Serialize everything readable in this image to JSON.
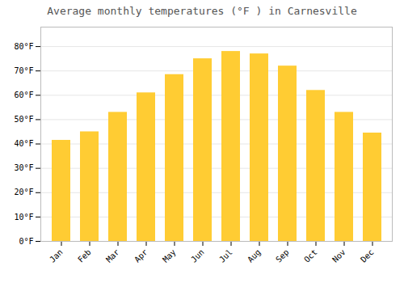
{
  "chart_data": {
    "type": "bar",
    "title": "Average monthly temperatures (°F ) in Carnesville",
    "categories": [
      "Jan",
      "Feb",
      "Mar",
      "Apr",
      "May",
      "Jun",
      "Jul",
      "Aug",
      "Sep",
      "Oct",
      "Nov",
      "Dec"
    ],
    "values": [
      41.5,
      45,
      53,
      61,
      68.5,
      75,
      78,
      77,
      72,
      62,
      53,
      44.5
    ],
    "color": "#FFCC33",
    "ylim": [
      0,
      88
    ],
    "yticks": [
      {
        "value": 0,
        "label": "0°F"
      },
      {
        "value": 10,
        "label": "10°F"
      },
      {
        "value": 20,
        "label": "20°F"
      },
      {
        "value": 30,
        "label": "30°F"
      },
      {
        "value": 40,
        "label": "40°F"
      },
      {
        "value": 50,
        "label": "50°F"
      },
      {
        "value": 60,
        "label": "60°F"
      },
      {
        "value": 70,
        "label": "70°F"
      },
      {
        "value": 80,
        "label": "80°F"
      }
    ],
    "grid": true
  }
}
